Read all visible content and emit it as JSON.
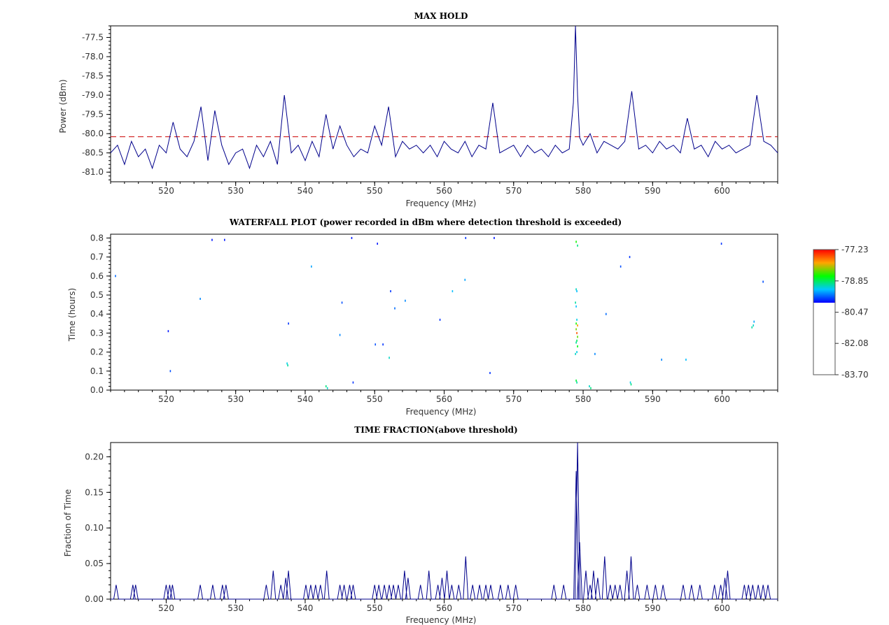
{
  "chart_data": [
    {
      "id": "maxhold",
      "type": "line",
      "title": "MAX HOLD",
      "xlabel": "Frequency (MHz)",
      "ylabel": "Power (dBm)",
      "xlim": [
        512,
        608
      ],
      "ylim": [
        -81.25,
        -77.2
      ],
      "xticks": [
        520,
        530,
        540,
        550,
        560,
        570,
        580,
        590,
        600
      ],
      "yticks": [
        -77.5,
        -78.0,
        -78.5,
        -79.0,
        -79.5,
        -80.0,
        -80.5,
        -81.0
      ],
      "ytick_labels": [
        "-77.5",
        "-78.0",
        "-78.5",
        "-79.0",
        "-79.5",
        "-80.0",
        "-80.5",
        "-81.0"
      ],
      "threshold": -80.08,
      "threshold_color": "#cc0000",
      "line_color": "#00008b",
      "grid": false,
      "series": [
        {
          "x": [
            512,
            513,
            514,
            515,
            516,
            517,
            518,
            519,
            520,
            521,
            522,
            523,
            524,
            525,
            526,
            527,
            528,
            529,
            530,
            531,
            532,
            533,
            534,
            535,
            536,
            537,
            538,
            539,
            540,
            541,
            542,
            543,
            544,
            545,
            546,
            547,
            548,
            549,
            550,
            551,
            552,
            553,
            554,
            555,
            556,
            557,
            558,
            559,
            560,
            561,
            562,
            563,
            564,
            565,
            566,
            567,
            568,
            569,
            570,
            571,
            572,
            573,
            574,
            575,
            576,
            577,
            578,
            578.6,
            578.9,
            579.2,
            579.5,
            580,
            581,
            582,
            583,
            584,
            585,
            586,
            587,
            588,
            589,
            590,
            591,
            592,
            593,
            594,
            595,
            596,
            597,
            598,
            599,
            600,
            601,
            602,
            603,
            604,
            605,
            606,
            607,
            608
          ],
          "values": [
            -80.5,
            -80.3,
            -80.8,
            -80.2,
            -80.6,
            -80.4,
            -80.9,
            -80.3,
            -80.5,
            -79.7,
            -80.4,
            -80.6,
            -80.2,
            -79.3,
            -80.7,
            -79.4,
            -80.3,
            -80.8,
            -80.5,
            -80.4,
            -80.9,
            -80.3,
            -80.6,
            -80.2,
            -80.8,
            -79.0,
            -80.5,
            -80.3,
            -80.7,
            -80.2,
            -80.6,
            -79.5,
            -80.4,
            -79.8,
            -80.3,
            -80.6,
            -80.4,
            -80.5,
            -79.8,
            -80.3,
            -79.3,
            -80.6,
            -80.2,
            -80.4,
            -80.3,
            -80.5,
            -80.3,
            -80.6,
            -80.2,
            -80.4,
            -80.5,
            -80.2,
            -80.6,
            -80.3,
            -80.4,
            -79.2,
            -80.5,
            -80.4,
            -80.3,
            -80.6,
            -80.3,
            -80.5,
            -80.4,
            -80.6,
            -80.3,
            -80.5,
            -80.4,
            -79.2,
            -77.2,
            -79.0,
            -80.1,
            -80.3,
            -80.0,
            -80.5,
            -80.2,
            -80.3,
            -80.4,
            -80.2,
            -78.9,
            -80.4,
            -80.3,
            -80.5,
            -80.2,
            -80.4,
            -80.3,
            -80.5,
            -79.6,
            -80.4,
            -80.3,
            -80.6,
            -80.2,
            -80.4,
            -80.3,
            -80.5,
            -80.4,
            -80.3,
            -79.0,
            -80.2,
            -80.3,
            -80.5
          ]
        }
      ]
    },
    {
      "id": "waterfall",
      "type": "heatmap",
      "title": "WATERFALL PLOT (power recorded in dBm where detection threshold is exceeded)",
      "xlabel": "Frequency (MHz)",
      "ylabel": "Time (hours)",
      "xlim": [
        512,
        608
      ],
      "ylim": [
        0,
        0.82
      ],
      "xticks": [
        520,
        530,
        540,
        550,
        560,
        570,
        580,
        590,
        600
      ],
      "yticks": [
        0.0,
        0.1,
        0.2,
        0.3,
        0.4,
        0.5,
        0.6,
        0.7,
        0.8
      ],
      "ytick_labels": [
        "0.0",
        "0.1",
        "0.2",
        "0.3",
        "0.4",
        "0.5",
        "0.6",
        "0.7",
        "0.8"
      ],
      "colorbar": {
        "ticks": [
          -77.23,
          -78.85,
          -80.47,
          -82.08,
          -83.7
        ],
        "tick_labels": [
          "-77.23",
          "-78.85",
          "-80.47",
          "-82.08",
          "-83.70"
        ],
        "vmin": -83.7,
        "vmax": -77.23,
        "white_below": -80.08
      },
      "points": [
        [
          512.7,
          0.6
        ],
        [
          520.3,
          0.31
        ],
        [
          520.6,
          0.1
        ],
        [
          524.9,
          0.48
        ],
        [
          526.6,
          0.79
        ],
        [
          528.4,
          0.79
        ],
        [
          537.6,
          0.35
        ],
        [
          537.4,
          0.14
        ],
        [
          537.5,
          0.13
        ],
        [
          540.9,
          0.65
        ],
        [
          543.2,
          0.01
        ],
        [
          543.0,
          0.02
        ],
        [
          545.0,
          0.29
        ],
        [
          545.3,
          0.46
        ],
        [
          546.7,
          0.8
        ],
        [
          546.9,
          0.04
        ],
        [
          550.1,
          0.24
        ],
        [
          550.4,
          0.77
        ],
        [
          551.2,
          0.24
        ],
        [
          552.1,
          0.17
        ],
        [
          552.3,
          0.52
        ],
        [
          552.9,
          0.43
        ],
        [
          554.4,
          0.47
        ],
        [
          559.4,
          0.37
        ],
        [
          561.2,
          0.52
        ],
        [
          563.0,
          0.58
        ],
        [
          563.1,
          0.8
        ],
        [
          566.6,
          0.09
        ],
        [
          567.2,
          0.8
        ],
        [
          579.0,
          0.78
        ],
        [
          579.2,
          0.76
        ],
        [
          579.0,
          0.53
        ],
        [
          579.1,
          0.52
        ],
        [
          578.9,
          0.46
        ],
        [
          579.0,
          0.44
        ],
        [
          579.1,
          0.37
        ],
        [
          579.0,
          0.35
        ],
        [
          579.2,
          0.34
        ],
        [
          579.0,
          0.32
        ],
        [
          579.1,
          0.3
        ],
        [
          579.2,
          0.28
        ],
        [
          579.1,
          0.26
        ],
        [
          579.0,
          0.25
        ],
        [
          579.2,
          0.23
        ],
        [
          579.1,
          0.2
        ],
        [
          578.9,
          0.19
        ],
        [
          579.0,
          0.05
        ],
        [
          579.1,
          0.04
        ],
        [
          580.9,
          0.02
        ],
        [
          581.1,
          0.01
        ],
        [
          581.7,
          0.19
        ],
        [
          583.3,
          0.4
        ],
        [
          585.4,
          0.65
        ],
        [
          586.7,
          0.7
        ],
        [
          586.8,
          0.04
        ],
        [
          586.9,
          0.03
        ],
        [
          591.3,
          0.16
        ],
        [
          594.8,
          0.16
        ],
        [
          599.9,
          0.77
        ],
        [
          604.3,
          0.33
        ],
        [
          604.6,
          0.36
        ],
        [
          604.5,
          0.34
        ],
        [
          605.9,
          0.57
        ]
      ],
      "point_values": [
        -79.7,
        -80.0,
        -79.8,
        -79.6,
        -80.0,
        -80.0,
        -79.9,
        -79.3,
        -79.1,
        -79.5,
        -79.2,
        -79.0,
        -79.6,
        -79.8,
        -80.0,
        -79.9,
        -79.8,
        -80.0,
        -79.9,
        -79.2,
        -79.9,
        -79.7,
        -79.6,
        -79.9,
        -79.4,
        -79.5,
        -79.9,
        -79.9,
        -80.0,
        -78.6,
        -79.0,
        -79.2,
        -79.4,
        -79.1,
        -79.4,
        -79.3,
        -78.6,
        -77.9,
        -78.3,
        -77.6,
        -78.4,
        -78.9,
        -79.1,
        -78.7,
        -79.3,
        -79.2,
        -78.8,
        -79.1,
        -79.2,
        -79.0,
        -79.6,
        -79.7,
        -79.8,
        -79.9,
        -79.3,
        -79.0,
        -79.6,
        -79.4,
        -79.9,
        -79.1,
        -79.5,
        -79.2,
        -79.8
      ]
    },
    {
      "id": "timefraction",
      "type": "line",
      "title": "TIME FRACTION(above threshold)",
      "xlabel": "Frequency (MHz)",
      "ylabel": "Fraction of Time",
      "xlim": [
        512,
        608
      ],
      "ylim": [
        0,
        0.22
      ],
      "xticks": [
        520,
        530,
        540,
        550,
        560,
        570,
        580,
        590,
        600
      ],
      "yticks": [
        0.0,
        0.05,
        0.1,
        0.15,
        0.2
      ],
      "ytick_labels": [
        "0.00",
        "0.05",
        "0.10",
        "0.15",
        "0.20"
      ],
      "line_color": "#00008b",
      "grid": false,
      "spikes": [
        [
          512.8,
          0.02
        ],
        [
          515.2,
          0.02
        ],
        [
          515.6,
          0.02
        ],
        [
          520.0,
          0.02
        ],
        [
          520.5,
          0.02
        ],
        [
          520.9,
          0.02
        ],
        [
          524.9,
          0.02
        ],
        [
          526.7,
          0.02
        ],
        [
          528.1,
          0.02
        ],
        [
          528.6,
          0.02
        ],
        [
          534.4,
          0.02
        ],
        [
          535.4,
          0.04
        ],
        [
          536.5,
          0.02
        ],
        [
          537.2,
          0.03
        ],
        [
          537.6,
          0.04
        ],
        [
          540.1,
          0.02
        ],
        [
          540.8,
          0.02
        ],
        [
          541.5,
          0.02
        ],
        [
          542.2,
          0.02
        ],
        [
          543.1,
          0.04
        ],
        [
          545.0,
          0.02
        ],
        [
          545.6,
          0.02
        ],
        [
          546.4,
          0.02
        ],
        [
          546.9,
          0.02
        ],
        [
          550.0,
          0.02
        ],
        [
          550.6,
          0.02
        ],
        [
          551.4,
          0.02
        ],
        [
          552.1,
          0.02
        ],
        [
          552.7,
          0.02
        ],
        [
          553.4,
          0.02
        ],
        [
          554.3,
          0.04
        ],
        [
          554.8,
          0.03
        ],
        [
          556.6,
          0.02
        ],
        [
          557.8,
          0.04
        ],
        [
          559.1,
          0.02
        ],
        [
          559.7,
          0.03
        ],
        [
          560.4,
          0.04
        ],
        [
          561.1,
          0.02
        ],
        [
          562.1,
          0.02
        ],
        [
          563.1,
          0.06
        ],
        [
          564.1,
          0.02
        ],
        [
          565.1,
          0.02
        ],
        [
          566.0,
          0.02
        ],
        [
          566.7,
          0.02
        ],
        [
          568.1,
          0.02
        ],
        [
          569.2,
          0.02
        ],
        [
          570.3,
          0.02
        ],
        [
          575.8,
          0.02
        ],
        [
          577.2,
          0.02
        ],
        [
          579.0,
          0.18
        ],
        [
          579.2,
          0.22
        ],
        [
          579.5,
          0.08
        ],
        [
          580.4,
          0.04
        ],
        [
          581.0,
          0.02
        ],
        [
          581.5,
          0.04
        ],
        [
          582.1,
          0.03
        ],
        [
          583.1,
          0.06
        ],
        [
          583.9,
          0.02
        ],
        [
          584.6,
          0.02
        ],
        [
          585.3,
          0.02
        ],
        [
          586.3,
          0.04
        ],
        [
          586.9,
          0.06
        ],
        [
          587.8,
          0.02
        ],
        [
          589.2,
          0.02
        ],
        [
          590.4,
          0.02
        ],
        [
          591.5,
          0.02
        ],
        [
          594.4,
          0.02
        ],
        [
          595.6,
          0.02
        ],
        [
          596.8,
          0.02
        ],
        [
          598.9,
          0.02
        ],
        [
          599.8,
          0.02
        ],
        [
          600.4,
          0.03
        ],
        [
          600.8,
          0.04
        ],
        [
          603.2,
          0.02
        ],
        [
          603.8,
          0.02
        ],
        [
          604.4,
          0.02
        ],
        [
          605.2,
          0.02
        ],
        [
          605.9,
          0.02
        ],
        [
          606.6,
          0.02
        ]
      ]
    }
  ]
}
